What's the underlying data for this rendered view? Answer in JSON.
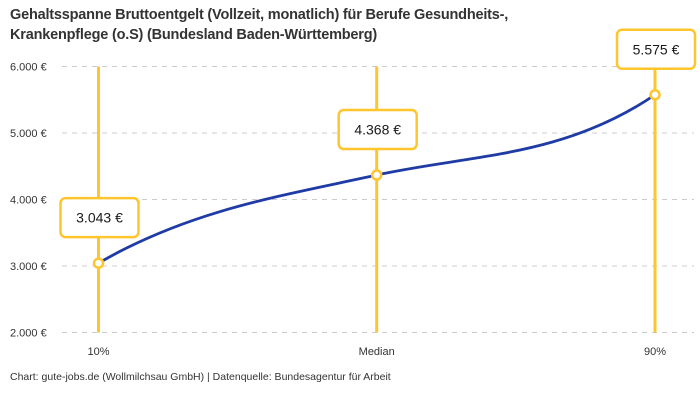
{
  "title": "Gehaltsspanne Bruttoentgelt (Vollzeit, monatlich) für Berufe Gesundheits-, Krankenpflege (o.S) (Bundesland Baden-Württemberg)",
  "title_lines": [
    "Gehaltsspanne Bruttoentgelt (Vollzeit, monatlich) für Berufe Gesundheits-,",
    "Krankenpflege (o.S) (Bundesland Baden-Württemberg)"
  ],
  "footer": "Chart: gute-jobs.de (Wollmilchsau GmbH) | Datenquelle: Bundesagentur für Arbeit",
  "chart_data": {
    "type": "line",
    "title": "Gehaltsspanne Bruttoentgelt (Vollzeit, monatlich) für Berufe Gesundheits-, Krankenpflege (o.S) (Bundesland Baden-Württemberg)",
    "categories": [
      "10%",
      "Median",
      "90%"
    ],
    "values": [
      3043,
      4368,
      5575
    ],
    "point_labels": [
      "3.043 €",
      "4.368 €",
      "5.575 €"
    ],
    "xlabel": "",
    "ylabel": "",
    "ylim": [
      2000,
      6000
    ],
    "y_tick_values": [
      6000,
      5000,
      4000,
      3000,
      2000
    ],
    "y_tick_labels": [
      "6.000 €",
      "5.000 €",
      "4.000 €",
      "3.000 €",
      "2.000 €"
    ],
    "grid": "horizontal-dashed",
    "legend": "none",
    "colors": {
      "line": "#1f3ba5",
      "accent": "#ffc52d",
      "marker_fill": "#ffffff",
      "grid": "#cccccc",
      "text": "#333333",
      "label_text": "#1a1a1a",
      "background": "#ffffff"
    }
  }
}
